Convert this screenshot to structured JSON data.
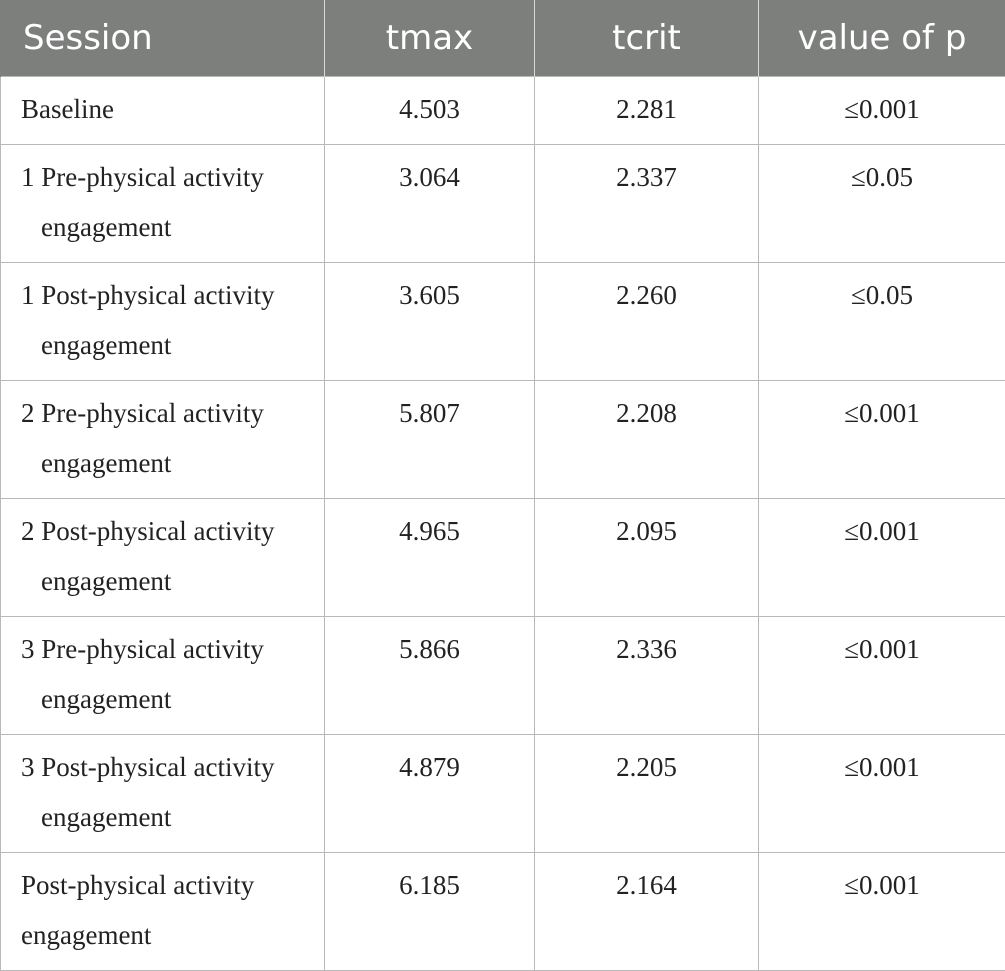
{
  "table": {
    "headers": [
      "Session",
      "tmax",
      "tcrit",
      "value of p"
    ],
    "rows": [
      {
        "session": "Baseline",
        "tmax": "4.503",
        "tcrit": "2.281",
        "p": "≤0.001"
      },
      {
        "session": "1 Pre-physical activity engagement",
        "tmax": "3.064",
        "tcrit": "2.337",
        "p": "≤0.05"
      },
      {
        "session": "1 Post-physical activity engagement",
        "tmax": "3.605",
        "tcrit": "2.260",
        "p": "≤0.05"
      },
      {
        "session": "2 Pre-physical activity engagement",
        "tmax": "5.807",
        "tcrit": "2.208",
        "p": "≤0.001"
      },
      {
        "session": "2 Post-physical activity engagement",
        "tmax": "4.965",
        "tcrit": "2.095",
        "p": "≤0.001"
      },
      {
        "session": "3 Pre-physical activity engagement",
        "tmax": "5.866",
        "tcrit": "2.336",
        "p": "≤0.001"
      },
      {
        "session": "3 Post-physical activity engagement",
        "tmax": "4.879",
        "tcrit": "2.205",
        "p": "≤0.001"
      },
      {
        "session": "Post-physical activity engagement",
        "tmax": "6.185",
        "tcrit": "2.164",
        "p": "≤0.001"
      }
    ]
  }
}
